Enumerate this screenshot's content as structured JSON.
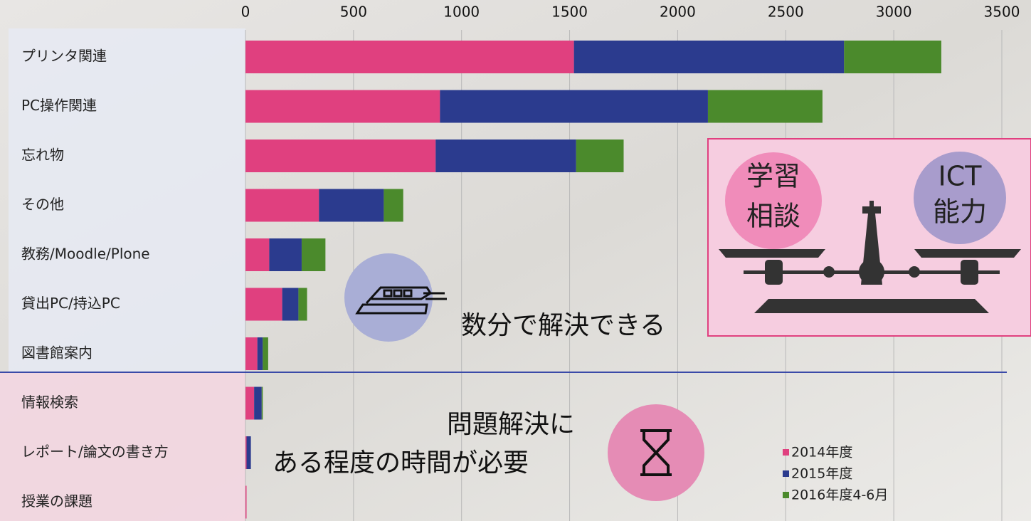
{
  "chart_data": {
    "type": "bar",
    "orientation": "horizontal",
    "stacked": true,
    "categories": [
      "プリンタ関連",
      "PC操作関連",
      "忘れ物",
      "その他",
      "教務/Moodle/Plone",
      "貸出PC/持込PC",
      "図書館案内",
      "情報検索",
      "レポート/論文の書き方",
      "授業の課題"
    ],
    "series": [
      {
        "name": "2014年度",
        "color": "#e0407f",
        "values": [
          1520,
          900,
          880,
          340,
          110,
          170,
          55,
          40,
          5,
          5
        ]
      },
      {
        "name": "2015年度",
        "color": "#2b3b8e",
        "values": [
          1250,
          1240,
          650,
          300,
          150,
          75,
          25,
          35,
          20,
          0
        ]
      },
      {
        "name": "2016年度4-6月",
        "color": "#4b8a2c",
        "values": [
          450,
          530,
          220,
          90,
          110,
          40,
          25,
          5,
          0,
          0
        ]
      }
    ],
    "xlim": [
      0,
      3500
    ],
    "xticks": [
      0,
      500,
      1000,
      1500,
      2000,
      2500,
      3000,
      3500
    ],
    "grid": true,
    "annotations": [
      "数分で解決できる",
      "問題解決に",
      "ある程度の時間が必要",
      "学習",
      "相談",
      "ICT",
      "能力"
    ]
  }
}
